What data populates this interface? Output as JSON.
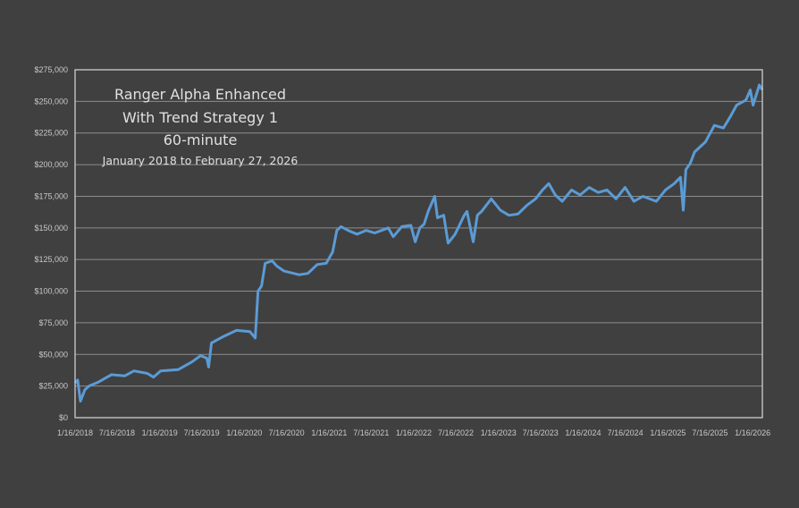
{
  "chart_data": {
    "type": "line",
    "title_lines": [
      "Ranger Alpha Enhanced",
      "With Trend Strategy 1",
      "60-minute",
      "January 2018 to February 27, 2026"
    ],
    "xlabel": "",
    "ylabel": "",
    "xlim": [
      "2018-01-16",
      "2026-02-27"
    ],
    "ylim": [
      0,
      275000
    ],
    "grid": "horizontal",
    "legend": "none",
    "y_ticks": [
      0,
      25000,
      50000,
      75000,
      100000,
      125000,
      150000,
      175000,
      200000,
      225000,
      250000,
      275000
    ],
    "y_tick_labels": [
      "$0",
      "$25,000",
      "$50,000",
      "$75,000",
      "$100,000",
      "$125,000",
      "$150,000",
      "$175,000",
      "$200,000",
      "$225,000",
      "$250,000",
      "$275,000"
    ],
    "x_ticks": [
      "2018-01-16",
      "2018-07-16",
      "2019-01-16",
      "2019-07-16",
      "2020-01-16",
      "2020-07-16",
      "2021-01-16",
      "2021-07-16",
      "2022-01-16",
      "2022-07-16",
      "2023-01-16",
      "2023-07-16",
      "2024-01-16",
      "2024-07-16",
      "2025-01-16",
      "2025-07-16",
      "2026-01-16"
    ],
    "x_tick_labels": [
      "1/16/2018",
      "7/16/2018",
      "1/16/2019",
      "7/16/2019",
      "1/16/2020",
      "7/16/2020",
      "1/16/2021",
      "7/16/2021",
      "1/16/2022",
      "7/16/2022",
      "1/16/2023",
      "7/16/2023",
      "1/16/2024",
      "7/16/2024",
      "1/16/2025",
      "7/16/2025",
      "1/16/2026"
    ],
    "colors": {
      "line": "#5b9bd5",
      "background": "#404040",
      "grid": "#8c8c8c",
      "text": "#c8c8c8"
    },
    "series": [
      {
        "x": [
          "2018-01-16",
          "2018-01-27",
          "2018-02-08",
          "2018-02-27",
          "2018-03-17",
          "2018-04-25",
          "2018-06-03",
          "2018-06-22",
          "2018-08-18",
          "2018-09-27",
          "2018-11-24",
          "2018-12-20",
          "2019-01-20",
          "2019-04-06",
          "2019-06-03",
          "2019-07-11",
          "2019-08-07",
          "2019-08-15",
          "2019-08-27",
          "2019-10-16",
          "2019-12-13",
          "2020-02-09",
          "2020-03-03",
          "2020-03-15",
          "2020-03-30",
          "2020-04-15",
          "2020-05-15",
          "2020-06-03",
          "2020-07-04",
          "2020-09-08",
          "2020-10-16",
          "2020-11-25",
          "2021-01-03",
          "2021-01-31",
          "2021-02-18",
          "2021-03-08",
          "2021-04-07",
          "2021-05-16",
          "2021-06-24",
          "2021-07-31",
          "2021-09-28",
          "2021-10-19",
          "2021-11-25",
          "2022-01-03",
          "2022-01-22",
          "2022-02-11",
          "2022-03-01",
          "2022-03-19",
          "2022-04-16",
          "2022-04-28",
          "2022-05-25",
          "2022-06-13",
          "2022-07-13",
          "2022-08-21",
          "2022-09-02",
          "2022-09-29",
          "2022-10-17",
          "2022-11-04",
          "2022-12-16",
          "2023-01-24",
          "2023-03-02",
          "2023-04-10",
          "2023-05-19",
          "2023-06-25",
          "2023-07-25",
          "2023-08-21",
          "2023-09-18",
          "2023-10-18",
          "2023-11-27",
          "2024-01-03",
          "2024-02-11",
          "2024-03-21",
          "2024-04-28",
          "2024-06-06",
          "2024-07-15",
          "2024-08-22",
          "2024-09-30",
          "2024-11-27",
          "2025-01-05",
          "2025-02-12",
          "2025-03-11",
          "2025-03-23",
          "2025-04-03",
          "2025-04-22",
          "2025-05-11",
          "2025-06-27",
          "2025-08-04",
          "2025-09-12",
          "2025-10-12",
          "2025-11-08",
          "2025-12-18",
          "2026-01-06",
          "2026-01-18",
          "2026-02-14",
          "2026-02-27"
        ],
        "y": [
          27600,
          29700,
          13000,
          22000,
          25000,
          28000,
          32000,
          34000,
          33000,
          37000,
          35000,
          32000,
          37000,
          38000,
          44000,
          49000,
          47000,
          40000,
          59000,
          64000,
          69000,
          68000,
          63000,
          100000,
          104000,
          122000,
          124000,
          120000,
          116000,
          113000,
          114000,
          121000,
          122000,
          131000,
          148000,
          151000,
          148000,
          145000,
          148000,
          146000,
          150000,
          143000,
          151000,
          152000,
          139000,
          150000,
          153000,
          163000,
          175000,
          158000,
          160000,
          138000,
          145000,
          160000,
          163000,
          139000,
          160000,
          163000,
          173000,
          164000,
          160000,
          161000,
          168000,
          173000,
          180000,
          185000,
          176000,
          171000,
          180000,
          176000,
          182000,
          178000,
          180000,
          173000,
          182000,
          171000,
          175000,
          171000,
          180000,
          185000,
          190000,
          164000,
          196000,
          201000,
          210000,
          218000,
          231000,
          229000,
          238000,
          247000,
          251000,
          259000,
          247000,
          263000,
          259000
        ]
      }
    ]
  }
}
